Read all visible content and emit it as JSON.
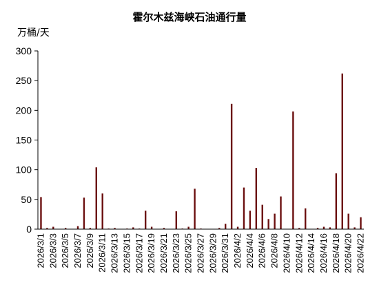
{
  "chart_data": {
    "type": "bar",
    "title": "霍尔木兹海峡石油通行量",
    "ylabel": "万桶/天",
    "xlabel": "",
    "ylim": [
      0,
      300
    ],
    "yticks": [
      0,
      50,
      100,
      150,
      200,
      250,
      300
    ],
    "grid": false,
    "legend": "none",
    "bar_color": "#6b0f0f",
    "categories": [
      "2026/3/1",
      "2026/3/2",
      "2026/3/3",
      "2026/3/4",
      "2026/3/5",
      "2026/3/6",
      "2026/3/7",
      "2026/3/8",
      "2026/3/9",
      "2026/3/10",
      "2026/3/11",
      "2026/3/12",
      "2026/3/13",
      "2026/3/14",
      "2026/3/15",
      "2026/3/16",
      "2026/3/17",
      "2026/3/18",
      "2026/3/19",
      "2026/3/20",
      "2026/3/21",
      "2026/3/22",
      "2026/3/23",
      "2026/3/24",
      "2026/3/25",
      "2026/3/26",
      "2026/3/27",
      "2026/3/28",
      "2026/3/29",
      "2026/3/30",
      "2026/3/31",
      "2026/4/1",
      "2026/4/2",
      "2026/4/3",
      "2026/4/4",
      "2026/4/5",
      "2026/4/6",
      "2026/4/7",
      "2026/4/8",
      "2026/4/9",
      "2026/4/10",
      "2026/4/11",
      "2026/4/12",
      "2026/4/13",
      "2026/4/14",
      "2026/4/15",
      "2026/4/16",
      "2026/4/17",
      "2026/4/18",
      "2026/4/19",
      "2026/4/20",
      "2026/4/21",
      "2026/4/22"
    ],
    "xtick_labels": [
      "2026/3/1",
      "2026/3/3",
      "2026/3/5",
      "2026/3/7",
      "2026/3/9",
      "2026/3/11",
      "2026/3/13",
      "2026/3/15",
      "2026/3/17",
      "2026/3/19",
      "2026/3/21",
      "2026/3/23",
      "2026/3/25",
      "2026/3/27",
      "2026/3/29",
      "2026/3/31",
      "2026/4/2",
      "2026/4/4",
      "2026/4/6",
      "2026/4/8",
      "2026/4/10",
      "2026/4/12",
      "2026/4/14",
      "2026/4/16",
      "2026/4/18",
      "2026/4/20",
      "2026/4/22"
    ],
    "values": [
      54,
      2,
      4,
      0,
      2,
      0,
      5,
      53,
      2,
      104,
      60,
      1,
      2,
      0,
      1,
      3,
      1,
      31,
      4,
      0,
      2,
      0,
      30,
      1,
      4,
      68,
      1,
      0,
      0,
      2,
      9,
      211,
      4,
      70,
      31,
      103,
      41,
      17,
      26,
      55,
      0,
      198,
      2,
      35,
      0,
      2,
      4,
      3,
      94,
      262,
      26,
      3,
      20
    ]
  }
}
